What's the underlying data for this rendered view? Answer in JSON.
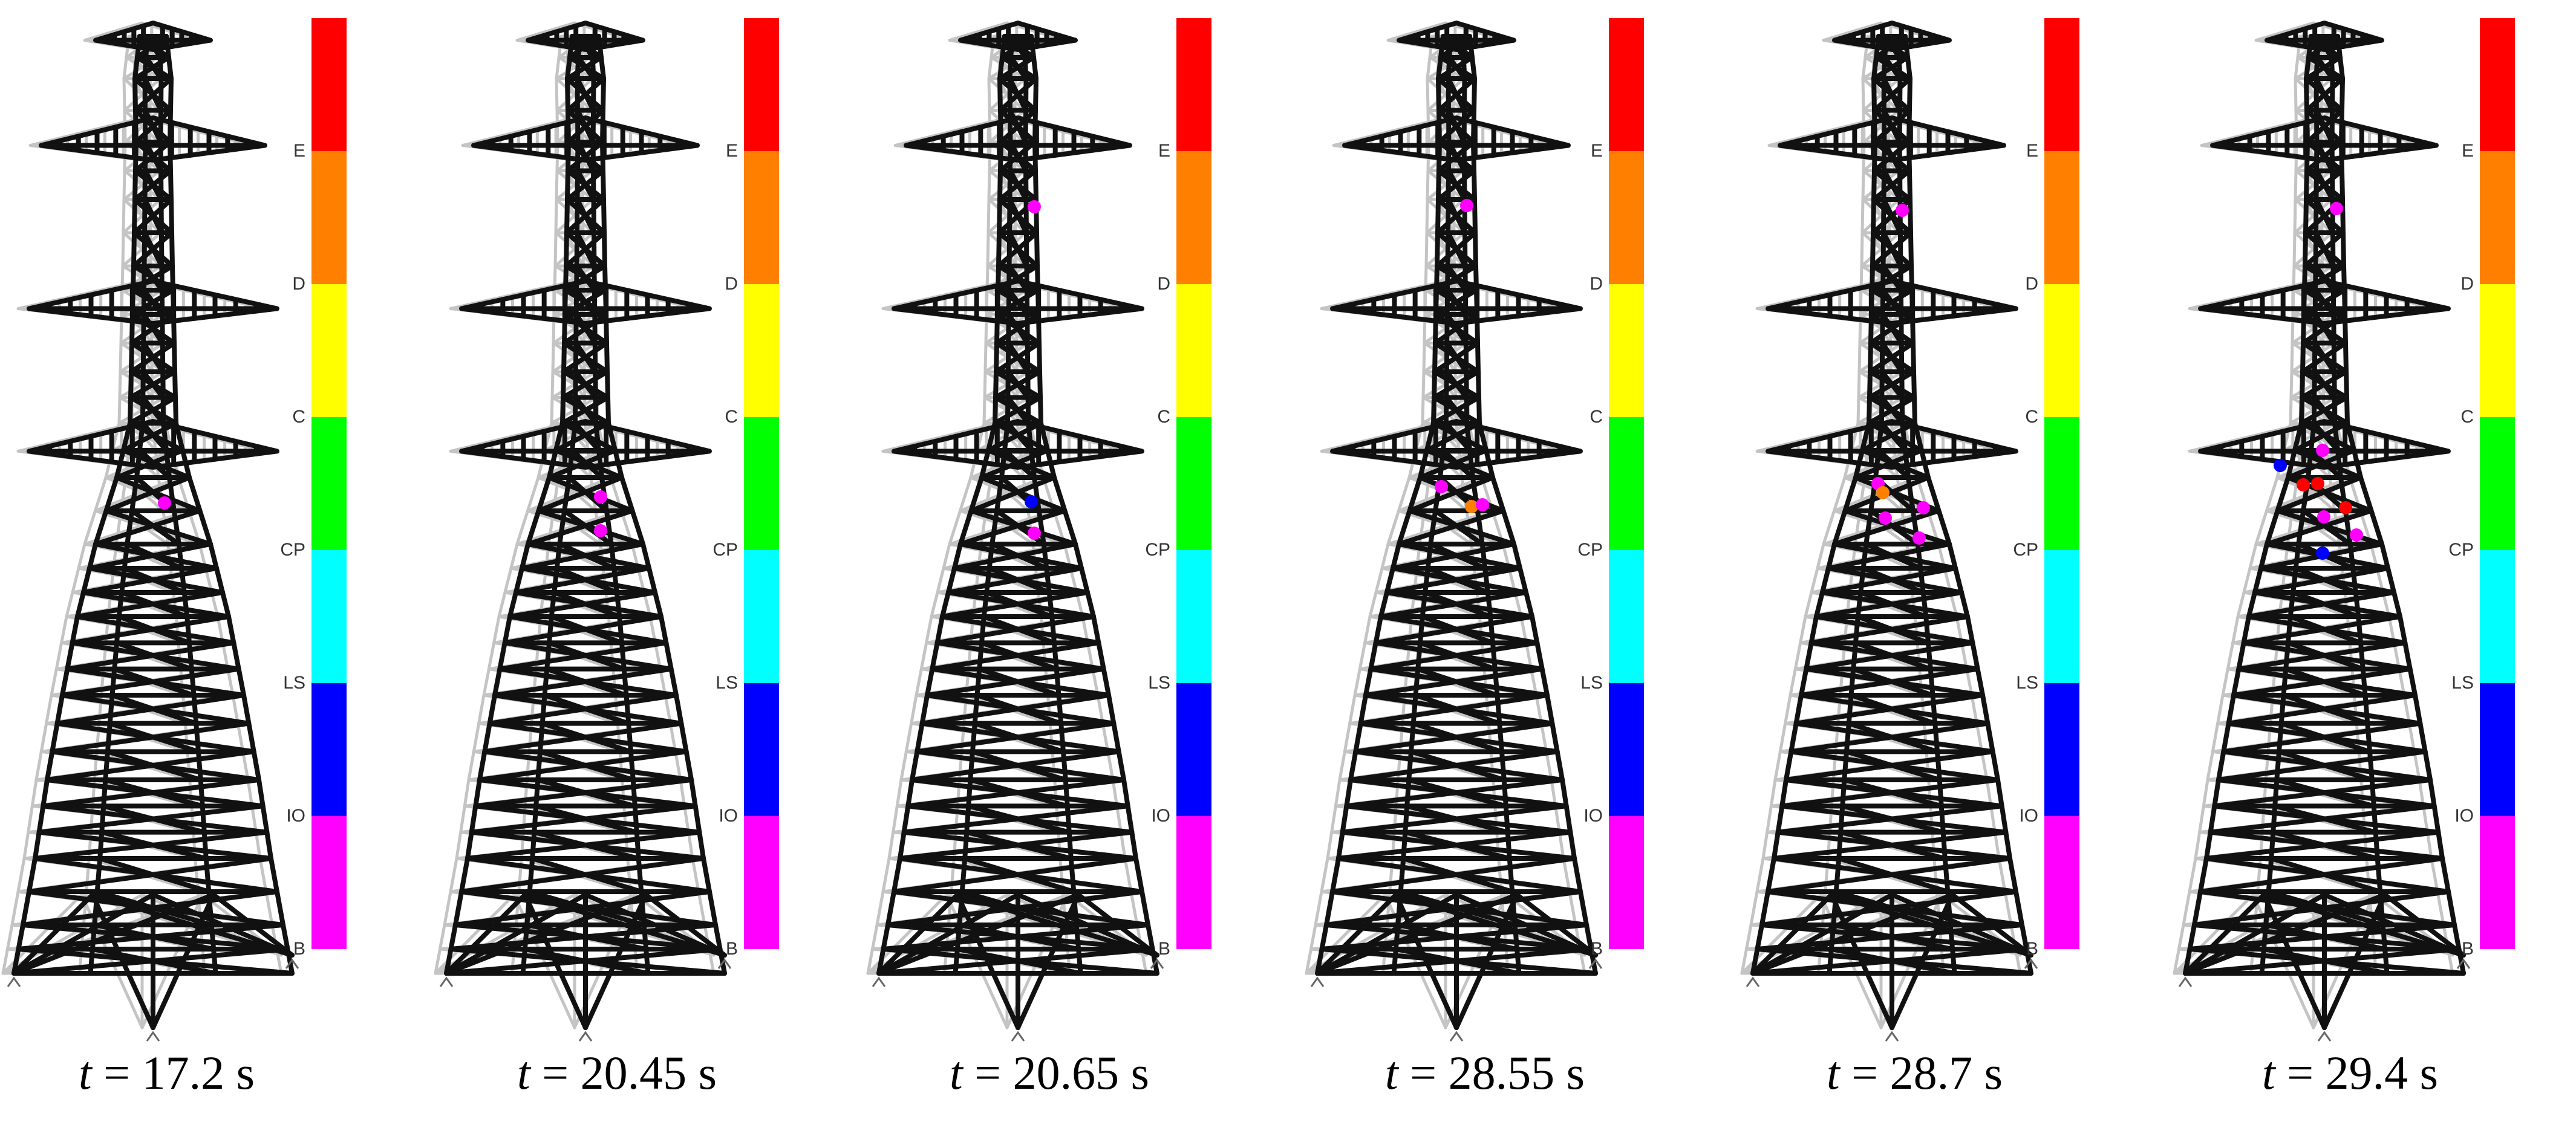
{
  "figure": {
    "panels": [
      {
        "caption_var": "t",
        "caption_value": "= 17.2 s",
        "hinges": [
          {
            "level": "B",
            "color": "#ff00ff"
          }
        ]
      },
      {
        "caption_var": "t",
        "caption_value": "= 20.45 s",
        "hinges": [
          {
            "level": "B",
            "color": "#ff00ff"
          },
          {
            "level": "B",
            "color": "#ff00ff"
          }
        ]
      },
      {
        "caption_var": "t",
        "caption_value": "= 20.65 s",
        "hinges": [
          {
            "level": "B",
            "color": "#ff00ff"
          },
          {
            "level": "IO",
            "color": "#0000ff"
          },
          {
            "level": "B",
            "color": "#ff00ff"
          }
        ]
      },
      {
        "caption_var": "t",
        "caption_value": "= 28.55 s",
        "hinges": [
          {
            "level": "B",
            "color": "#ff00ff"
          },
          {
            "level": "B",
            "color": "#ff00ff"
          },
          {
            "level": "D",
            "color": "#ff8000"
          },
          {
            "level": "B",
            "color": "#ff00ff"
          }
        ]
      },
      {
        "caption_var": "t",
        "caption_value": "= 28.7 s",
        "hinges": [
          {
            "level": "B",
            "color": "#ff00ff"
          },
          {
            "level": "B",
            "color": "#ff00ff"
          },
          {
            "level": "D",
            "color": "#ff8000"
          },
          {
            "level": "B",
            "color": "#ff00ff"
          },
          {
            "level": "B",
            "color": "#ff00ff"
          },
          {
            "level": "B",
            "color": "#ff00ff"
          }
        ]
      },
      {
        "caption_var": "t",
        "caption_value": "= 29.4 s",
        "hinges": [
          {
            "level": "B",
            "color": "#ff00ff"
          },
          {
            "level": "B",
            "color": "#ff00ff"
          },
          {
            "level": "IO",
            "color": "#0000ff"
          },
          {
            "level": "E",
            "color": "#ff0000"
          },
          {
            "level": "E",
            "color": "#ff0000"
          },
          {
            "level": "E",
            "color": "#ff0000"
          },
          {
            "level": "B",
            "color": "#ff00ff"
          },
          {
            "level": "B",
            "color": "#ff00ff"
          },
          {
            "level": "IO",
            "color": "#0000ff"
          }
        ]
      }
    ],
    "legend": {
      "levels": [
        {
          "label": "E",
          "color": "#ff0000"
        },
        {
          "label": "D",
          "color": "#ff8000"
        },
        {
          "label": "C",
          "color": "#ffff00"
        },
        {
          "label": "CP",
          "color": "#00ff00"
        },
        {
          "label": "LS",
          "color": "#00ffff"
        },
        {
          "label": "IO",
          "color": "#0000ff"
        },
        {
          "label": "B",
          "color": "#ff00ff"
        }
      ]
    },
    "colors": {
      "tower_deformed": "#111111",
      "tower_undeformed": "#c4c4c4"
    }
  }
}
